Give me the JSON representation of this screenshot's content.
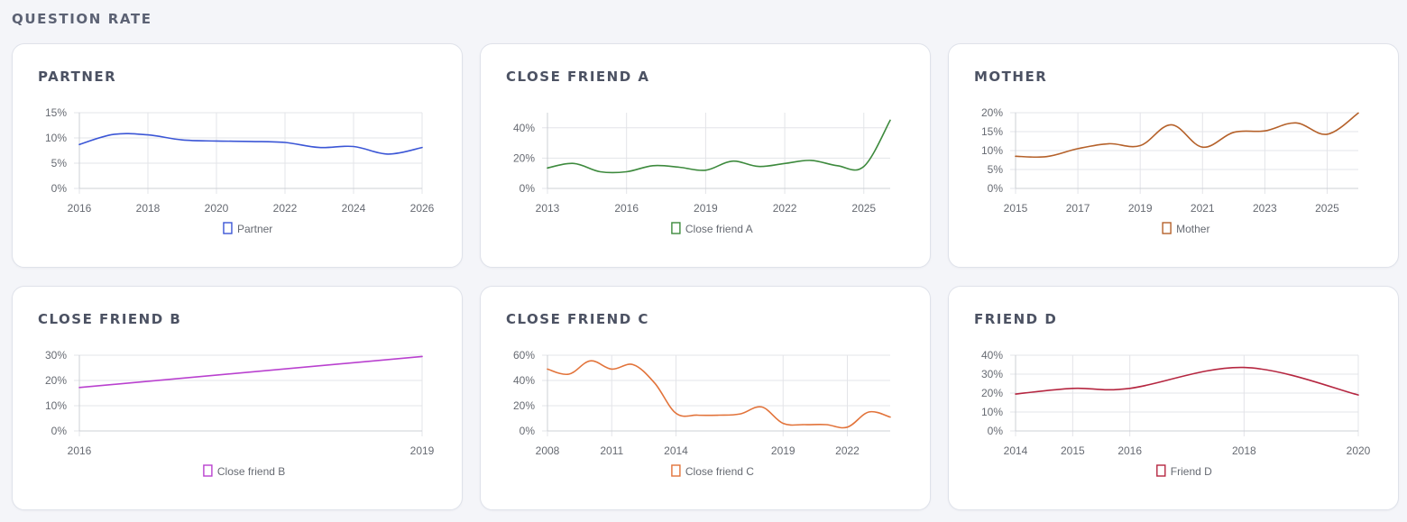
{
  "page": {
    "section_title": "QUESTION RATE"
  },
  "cards": [
    {
      "title": "PARTNER"
    },
    {
      "title": "CLOSE FRIEND A"
    },
    {
      "title": "MOTHER"
    },
    {
      "title": "CLOSE FRIEND B"
    },
    {
      "title": "CLOSE FRIEND C"
    },
    {
      "title": "FRIEND D"
    }
  ],
  "chart_data": [
    {
      "type": "line",
      "color": "#3b56d6",
      "x": [
        2016,
        2017,
        2018,
        2019,
        2020,
        2021,
        2022,
        2023,
        2024,
        2025,
        2026
      ],
      "series": [
        {
          "name": "Partner",
          "values": [
            8.7,
            10.7,
            10.6,
            9.6,
            9.4,
            9.3,
            9.1,
            8.1,
            8.3,
            6.8,
            8.1
          ]
        }
      ],
      "xlim": [
        2016,
        2026
      ],
      "ylim": [
        0,
        15
      ],
      "yticks": [
        0,
        5,
        10,
        15
      ],
      "ytick_labels": [
        "0%",
        "5%",
        "10%",
        "15%"
      ],
      "xticks": [
        2016,
        2018,
        2020,
        2022,
        2024,
        2026
      ],
      "xtick_labels": [
        "2016",
        "2018",
        "2020",
        "2022",
        "2024",
        "2026"
      ],
      "grid": true,
      "legend_position": "bottom"
    },
    {
      "type": "line",
      "color": "#3d8a3d",
      "x": [
        2013,
        2014,
        2015,
        2016,
        2017,
        2018,
        2019,
        2020,
        2021,
        2022,
        2023,
        2024,
        2025,
        2026
      ],
      "series": [
        {
          "name": "Close friend A",
          "values": [
            13.5,
            16.5,
            11,
            11,
            15,
            14,
            12,
            18,
            14.5,
            16.5,
            18.5,
            15,
            14.5,
            45
          ]
        }
      ],
      "xlim": [
        2013,
        2026
      ],
      "ylim": [
        0,
        50
      ],
      "yticks": [
        0,
        20,
        40
      ],
      "ytick_labels": [
        "0%",
        "20%",
        "40%"
      ],
      "xticks": [
        2013,
        2016,
        2019,
        2022,
        2025
      ],
      "xtick_labels": [
        "2013",
        "2016",
        "2019",
        "2022",
        "2025"
      ],
      "grid": true,
      "legend_position": "bottom"
    },
    {
      "type": "line",
      "color": "#b5612a",
      "x": [
        2015,
        2016,
        2017,
        2018,
        2019,
        2020,
        2021,
        2022,
        2023,
        2024,
        2025,
        2026
      ],
      "series": [
        {
          "name": "Mother",
          "values": [
            8.5,
            8.4,
            10.5,
            11.8,
            11.3,
            16.8,
            10.9,
            14.8,
            15.2,
            17.3,
            14.3,
            19.9
          ]
        }
      ],
      "xlim": [
        2015,
        2026
      ],
      "ylim": [
        0,
        20
      ],
      "yticks": [
        0,
        5,
        10,
        15,
        20
      ],
      "ytick_labels": [
        "0%",
        "5%",
        "10%",
        "15%",
        "20%"
      ],
      "xticks": [
        2015,
        2017,
        2019,
        2021,
        2023,
        2025
      ],
      "xtick_labels": [
        "2015",
        "2017",
        "2019",
        "2021",
        "2023",
        "2025"
      ],
      "grid": true,
      "legend_position": "bottom"
    },
    {
      "type": "line",
      "color": "#b941cf",
      "x": [
        2016,
        2019
      ],
      "series": [
        {
          "name": "Close friend B",
          "values": [
            17.2,
            29.5
          ]
        }
      ],
      "xlim": [
        2016,
        2019
      ],
      "ylim": [
        0,
        30
      ],
      "yticks": [
        0,
        10,
        20,
        30
      ],
      "ytick_labels": [
        "0%",
        "10%",
        "20%",
        "30%"
      ],
      "xticks": [
        2016,
        2019
      ],
      "xtick_labels": [
        "2016",
        "2019"
      ],
      "grid": true,
      "legend_position": "bottom"
    },
    {
      "type": "line",
      "color": "#e2733a",
      "x": [
        2008,
        2009,
        2010,
        2011,
        2012,
        2013,
        2014,
        2015,
        2016,
        2017,
        2018,
        2019,
        2020,
        2021,
        2022,
        2023,
        2024
      ],
      "series": [
        {
          "name": "Close friend C",
          "values": [
            49,
            45,
            55.5,
            49,
            52.5,
            38,
            14,
            12.5,
            12.5,
            13.5,
            19,
            6,
            5,
            5,
            3,
            15,
            11
          ]
        }
      ],
      "xlim": [
        2008,
        2024
      ],
      "ylim": [
        0,
        60
      ],
      "yticks": [
        0,
        20,
        40,
        60
      ],
      "ytick_labels": [
        "0%",
        "20%",
        "40%",
        "60%"
      ],
      "xticks": [
        2008,
        2011,
        2014,
        2019,
        2022
      ],
      "xtick_labels": [
        "2008",
        "2011",
        "2014",
        "2019",
        "2022"
      ],
      "grid": true,
      "legend_position": "bottom"
    },
    {
      "type": "line",
      "color": "#b52640",
      "x": [
        2014,
        2015,
        2016,
        2018,
        2020
      ],
      "series": [
        {
          "name": "Friend D",
          "values": [
            19.5,
            22.5,
            22.5,
            33.5,
            19
          ]
        }
      ],
      "xlim": [
        2014,
        2020
      ],
      "ylim": [
        0,
        40
      ],
      "yticks": [
        0,
        10,
        20,
        30,
        40
      ],
      "ytick_labels": [
        "0%",
        "10%",
        "20%",
        "30%",
        "40%"
      ],
      "xticks": [
        2014,
        2015,
        2016,
        2018,
        2020
      ],
      "xtick_labels": [
        "2014",
        "2015",
        "2016",
        "2018",
        "2020"
      ],
      "grid": true,
      "legend_position": "bottom"
    }
  ]
}
